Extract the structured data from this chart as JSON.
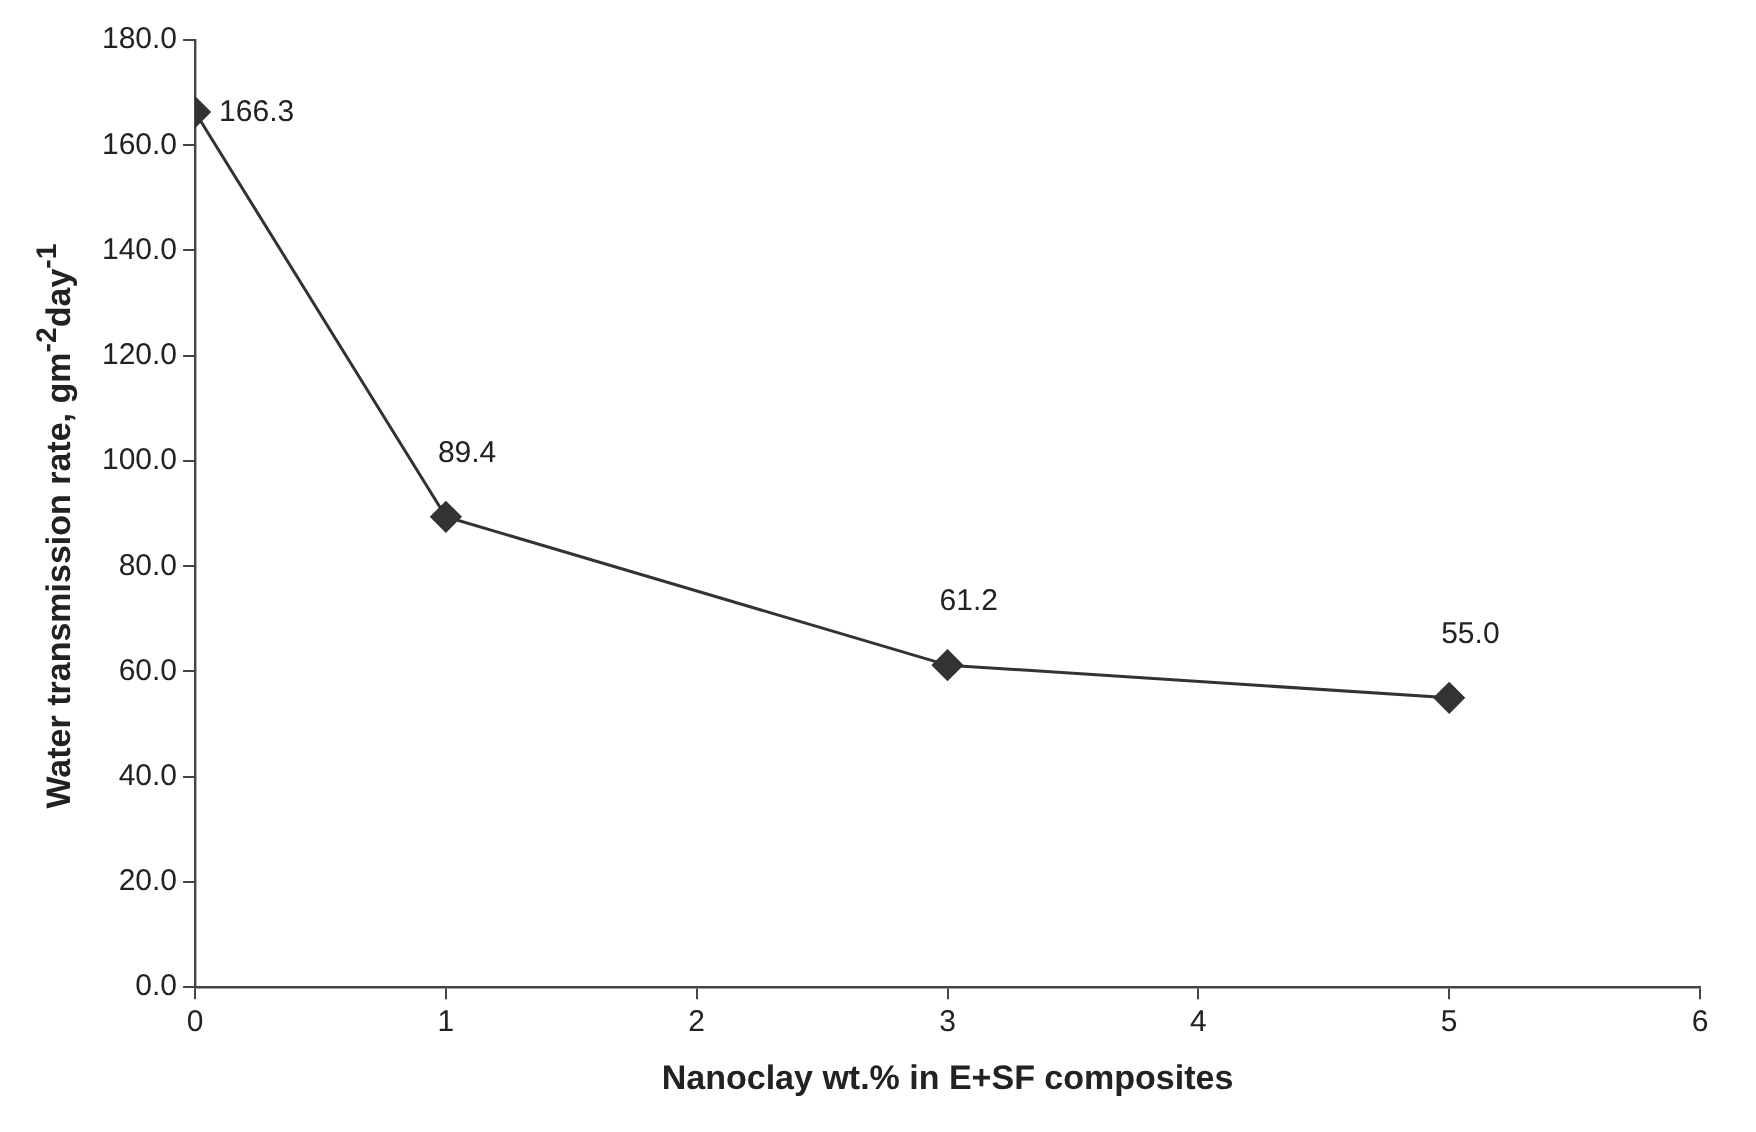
{
  "chart_data": {
    "type": "line",
    "xlabel": "Nanoclay wt.% in E+SF composites",
    "ylabel": "Water transmission rate, gm$^{-2}$day$^{-1}$",
    "x": [
      0,
      1,
      3,
      5
    ],
    "series": [
      {
        "color": "#333333",
        "values": [
          166.3,
          89.4,
          61.2,
          55.0
        ],
        "value_labels": [
          "166.3",
          "89.4",
          "61.2",
          "55.0"
        ]
      }
    ],
    "xlim": [
      0,
      6
    ],
    "xticks": [
      0,
      1,
      2,
      3,
      4,
      5,
      6
    ],
    "ylim": [
      0,
      180
    ],
    "yticks": [
      {
        "value": 0,
        "label": "0.0"
      },
      {
        "value": 20,
        "label": "20.0"
      },
      {
        "value": 40,
        "label": "40.0"
      },
      {
        "value": 60,
        "label": "60.0"
      },
      {
        "value": 80,
        "label": "80.0"
      },
      {
        "value": 100,
        "label": "100.0"
      },
      {
        "value": 120,
        "label": "120.0"
      },
      {
        "value": 140,
        "label": "140.0"
      },
      {
        "value": 160,
        "label": "160.0"
      },
      {
        "value": 180,
        "label": "180.0"
      }
    ],
    "grid": false,
    "legend": false,
    "marker": "diamond",
    "line_style": "solid"
  }
}
